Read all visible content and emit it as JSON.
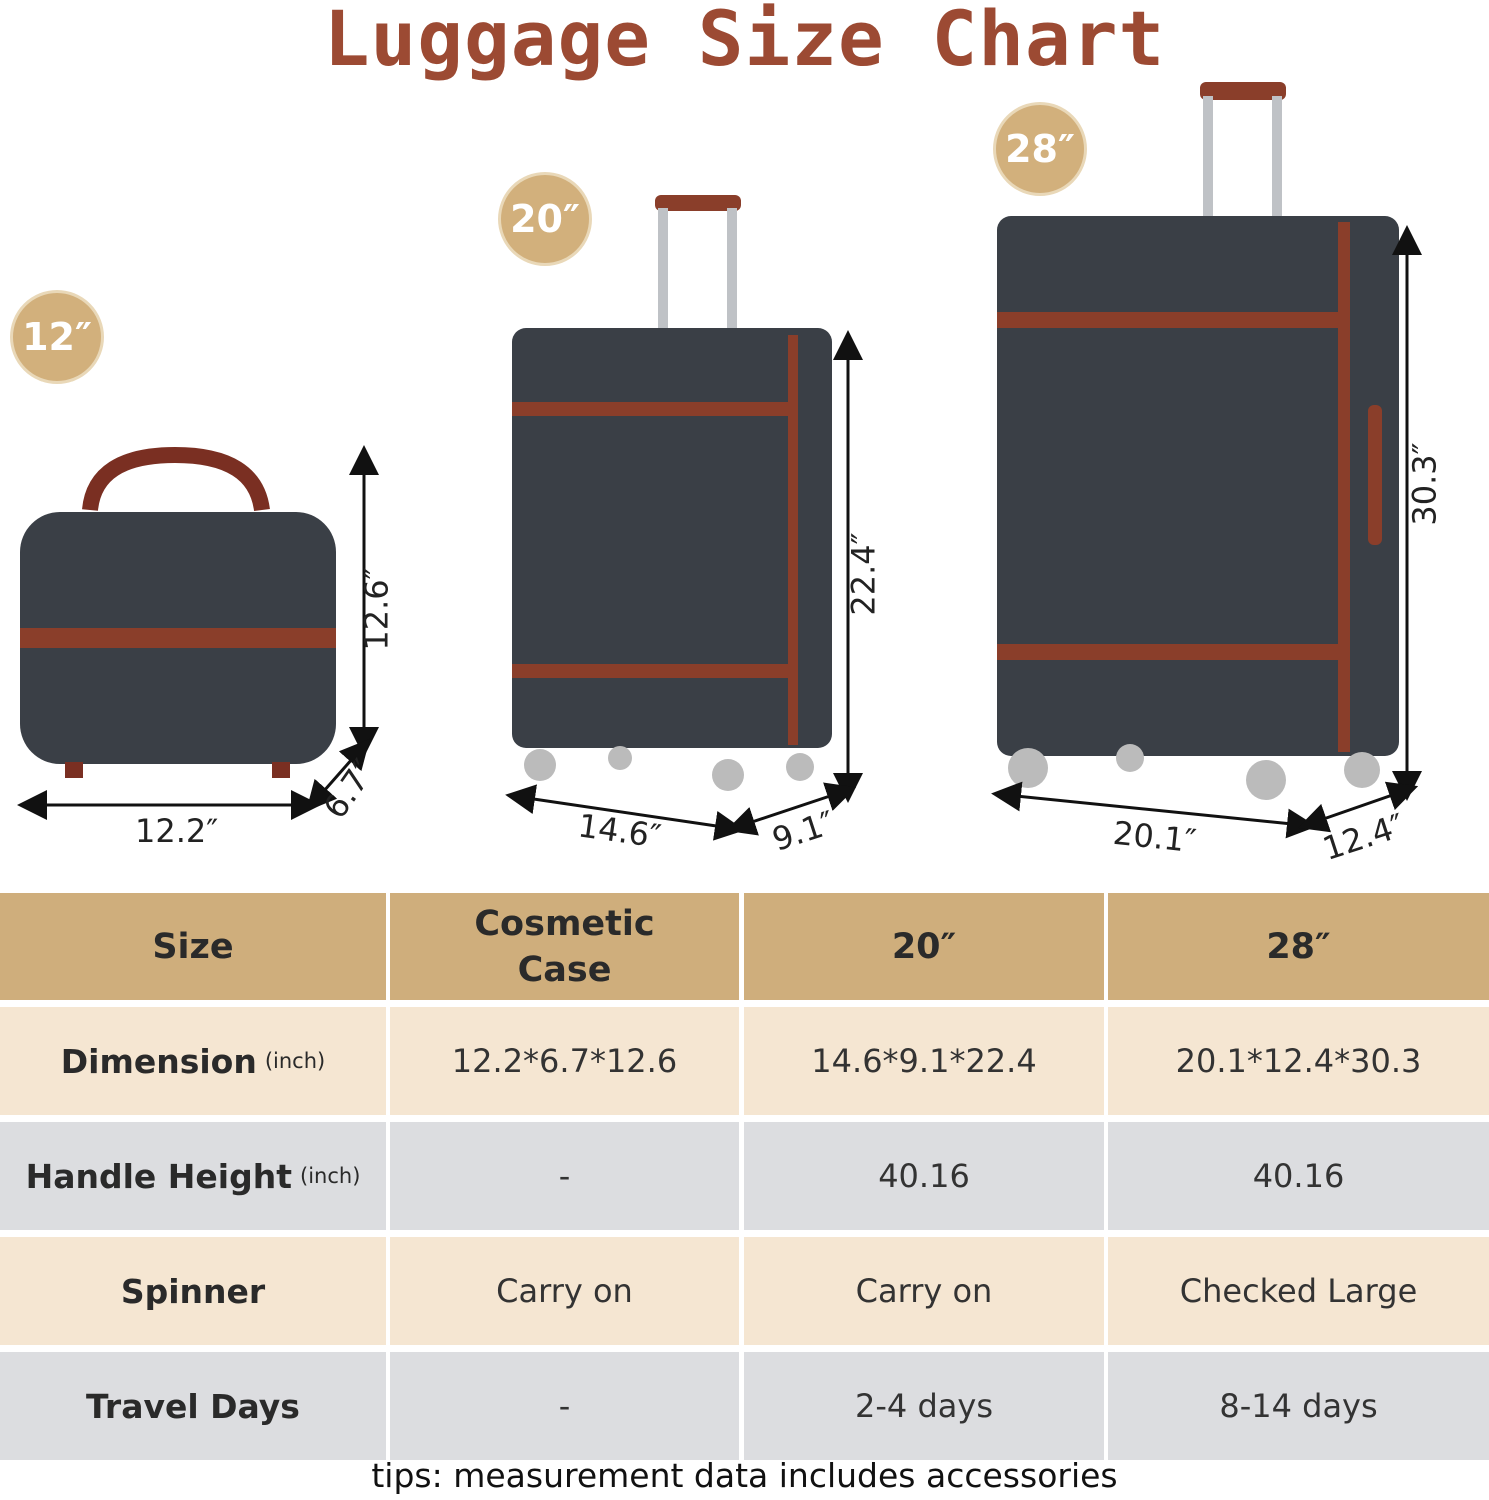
{
  "title": "Luggage Size Chart",
  "colors": {
    "title": "#9c4a33",
    "badge": "#d2b07c",
    "header": "#cfae7c",
    "row_odd": "#f5e6d2",
    "row_even": "#dcdde0",
    "shell": "#3a3f46",
    "trim": "#8a3e2a"
  },
  "products": [
    {
      "badge": "12″",
      "width": "12.2″",
      "depth": "6.7″",
      "height": "12.6″"
    },
    {
      "badge": "20″",
      "width": "14.6″",
      "depth": "9.1″",
      "height": "22.4″"
    },
    {
      "badge": "28″",
      "width": "20.1″",
      "depth": "12.4″",
      "height": "30.3″"
    }
  ],
  "table": {
    "headers": [
      "Size",
      "Cosmetic Case",
      "20″",
      "28″"
    ],
    "rows": [
      {
        "label": "Dimension",
        "unit": "(inch)",
        "values": [
          "12.2*6.7*12.6",
          "14.6*9.1*22.4",
          "20.1*12.4*30.3"
        ]
      },
      {
        "label": "Handle Height",
        "unit": "(inch)",
        "values": [
          "-",
          "40.16",
          "40.16"
        ]
      },
      {
        "label": "Spinner",
        "unit": "",
        "values": [
          "Carry on",
          "Carry on",
          "Checked Large"
        ]
      },
      {
        "label": "Travel Days",
        "unit": "",
        "values": [
          "-",
          "2-4 days",
          "8-14 days"
        ]
      }
    ]
  },
  "tips": "tips: measurement data includes accessories"
}
